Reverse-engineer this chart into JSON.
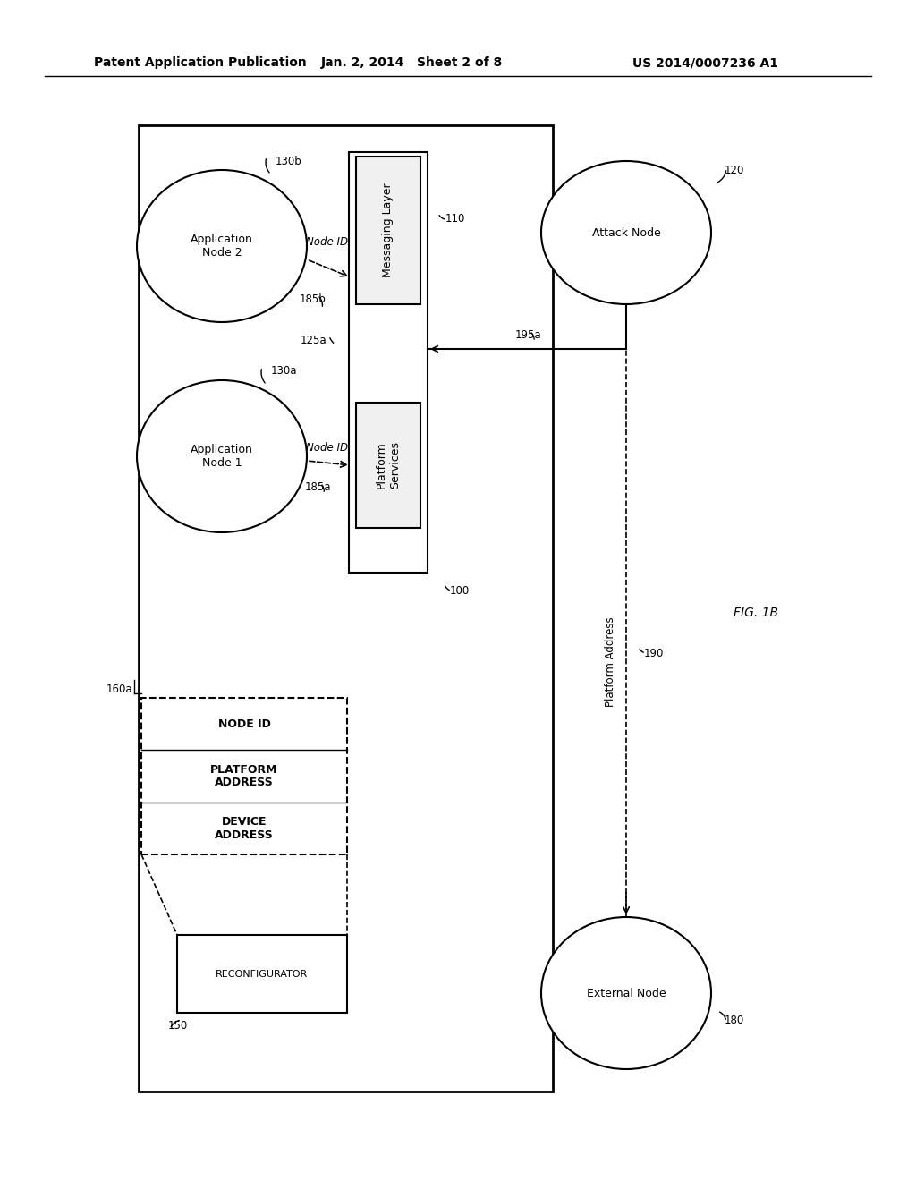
{
  "bg_color": "#ffffff",
  "lc": "#000000",
  "header_left": "Patent Application Publication",
  "header_mid": "Jan. 2, 2014   Sheet 2 of 8",
  "header_right": "US 2014/0007236 A1",
  "fig_label": "FIG. 1B"
}
